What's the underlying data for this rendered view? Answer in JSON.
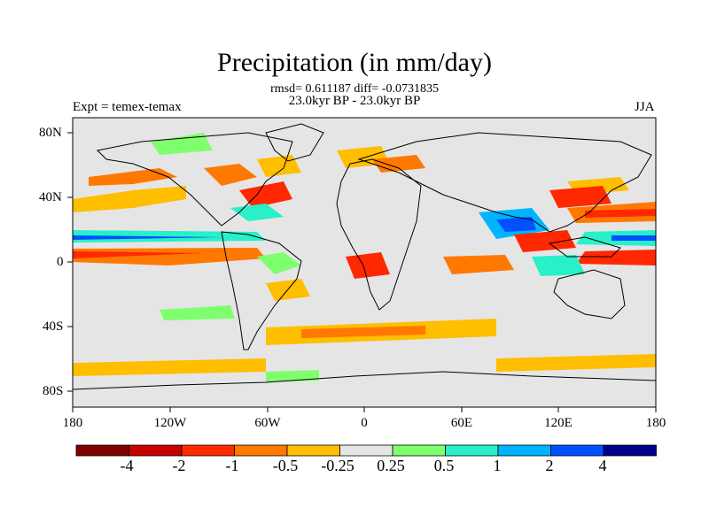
{
  "title": "Precipitation (in mm/day)",
  "stats_line": "rmsd= 0.611187 diff= -0.0731835",
  "period_line": "23.0kyr BP - 23.0kyr BP",
  "experiment_label": "Expt = temex-temax",
  "season_label": "JJA",
  "lat_ticks": [
    "80N",
    "40N",
    "0",
    "40S",
    "80S"
  ],
  "lon_ticks": [
    "180",
    "120W",
    "60W",
    "0",
    "60E",
    "120E",
    "180"
  ],
  "colorbar": {
    "colors": [
      "#800000",
      "#c80000",
      "#ff2800",
      "#ff7800",
      "#ffbe00",
      "#e5e5e5",
      "#80ff6e",
      "#28f0c8",
      "#00b4ff",
      "#0050ff",
      "#00008c"
    ],
    "labels": [
      "-4",
      "-2",
      "-1",
      "-0.5",
      "-0.25",
      "0.25",
      "0.5",
      "1",
      "2",
      "4"
    ]
  },
  "colors": {
    "ocean_background": "#e5e5e5",
    "coastline": "#000000"
  }
}
